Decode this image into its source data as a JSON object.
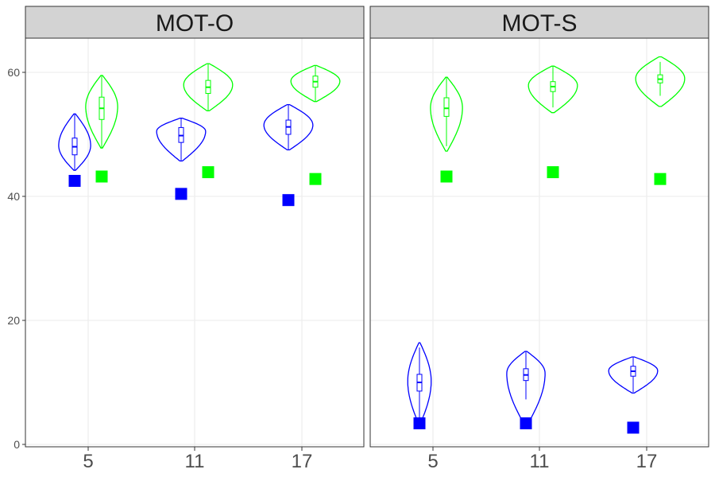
{
  "chart_data": {
    "type": "violin",
    "y_range": [
      0,
      65
    ],
    "y_ticks": [
      "0",
      "20",
      "40",
      "60"
    ],
    "x_tick_labels": [
      "5",
      "11",
      "17"
    ],
    "grid": true,
    "legend": "none",
    "colors": {
      "blue": "#0000ff",
      "green": "#00ff00",
      "strip_fill": "#d3d3d3",
      "grid": "#ebebeb",
      "border": "#333333"
    },
    "panels": [
      {
        "title": "MOT-O",
        "groups": [
          {
            "x": "5",
            "blue": {
              "min": 44.2,
              "q1": 46.7,
              "median": 48.0,
              "q3": 49.4,
              "max": 53.3,
              "mode": 48.2,
              "width": 0.3,
              "point": 42.5
            },
            "green": {
              "min": 47.8,
              "q1": 52.4,
              "median": 54.2,
              "q3": 56.0,
              "max": 59.5,
              "mode": 54.5,
              "width": 0.3,
              "point": 43.2
            }
          },
          {
            "x": "11",
            "blue": {
              "min": 45.7,
              "q1": 48.7,
              "median": 49.8,
              "q3": 51.1,
              "max": 52.6,
              "mode": 50.5,
              "width": 0.46,
              "point": 40.4
            },
            "green": {
              "min": 53.8,
              "q1": 56.6,
              "median": 57.6,
              "q3": 58.7,
              "max": 61.4,
              "mode": 58.0,
              "width": 0.46,
              "point": 43.9
            }
          },
          {
            "x": "17",
            "blue": {
              "min": 47.5,
              "q1": 50.0,
              "median": 51.2,
              "q3": 52.3,
              "max": 54.8,
              "mode": 51.5,
              "width": 0.46,
              "point": 39.4
            },
            "green": {
              "min": 55.3,
              "q1": 57.6,
              "median": 58.5,
              "q3": 59.4,
              "max": 61.1,
              "mode": 58.6,
              "width": 0.46,
              "point": 42.8
            }
          }
        ]
      },
      {
        "title": "MOT-S",
        "groups": [
          {
            "x": "5",
            "blue": {
              "min": 3.2,
              "q1": 8.6,
              "median": 10.0,
              "q3": 11.3,
              "max": 16.4,
              "mode": 10.2,
              "width": 0.22,
              "point": 3.4
            },
            "green": {
              "min": 47.3,
              "q1": 52.9,
              "median": 54.2,
              "q3": 55.9,
              "max": 59.2,
              "mode": 54.3,
              "width": 0.3,
              "point": 43.2
            }
          },
          {
            "x": "11",
            "blue": {
              "min": 3.0,
              "q1": 10.3,
              "median": 11.2,
              "q3": 12.2,
              "max": 15.0,
              "mode": 11.5,
              "width": 0.36,
              "point": 3.4
            },
            "green": {
              "min": 53.5,
              "q1": 56.9,
              "median": 57.7,
              "q3": 58.5,
              "max": 61.0,
              "mode": 57.9,
              "width": 0.46,
              "point": 43.9
            }
          },
          {
            "x": "17",
            "blue": {
              "min": 8.3,
              "q1": 11.0,
              "median": 11.8,
              "q3": 12.6,
              "max": 14.1,
              "mode": 11.9,
              "width": 0.46,
              "point": 2.7
            },
            "green": {
              "min": 54.5,
              "q1": 58.3,
              "median": 58.9,
              "q3": 59.6,
              "max": 62.5,
              "mode": 59.0,
              "width": 0.46,
              "point": 42.8
            }
          }
        ]
      }
    ]
  }
}
